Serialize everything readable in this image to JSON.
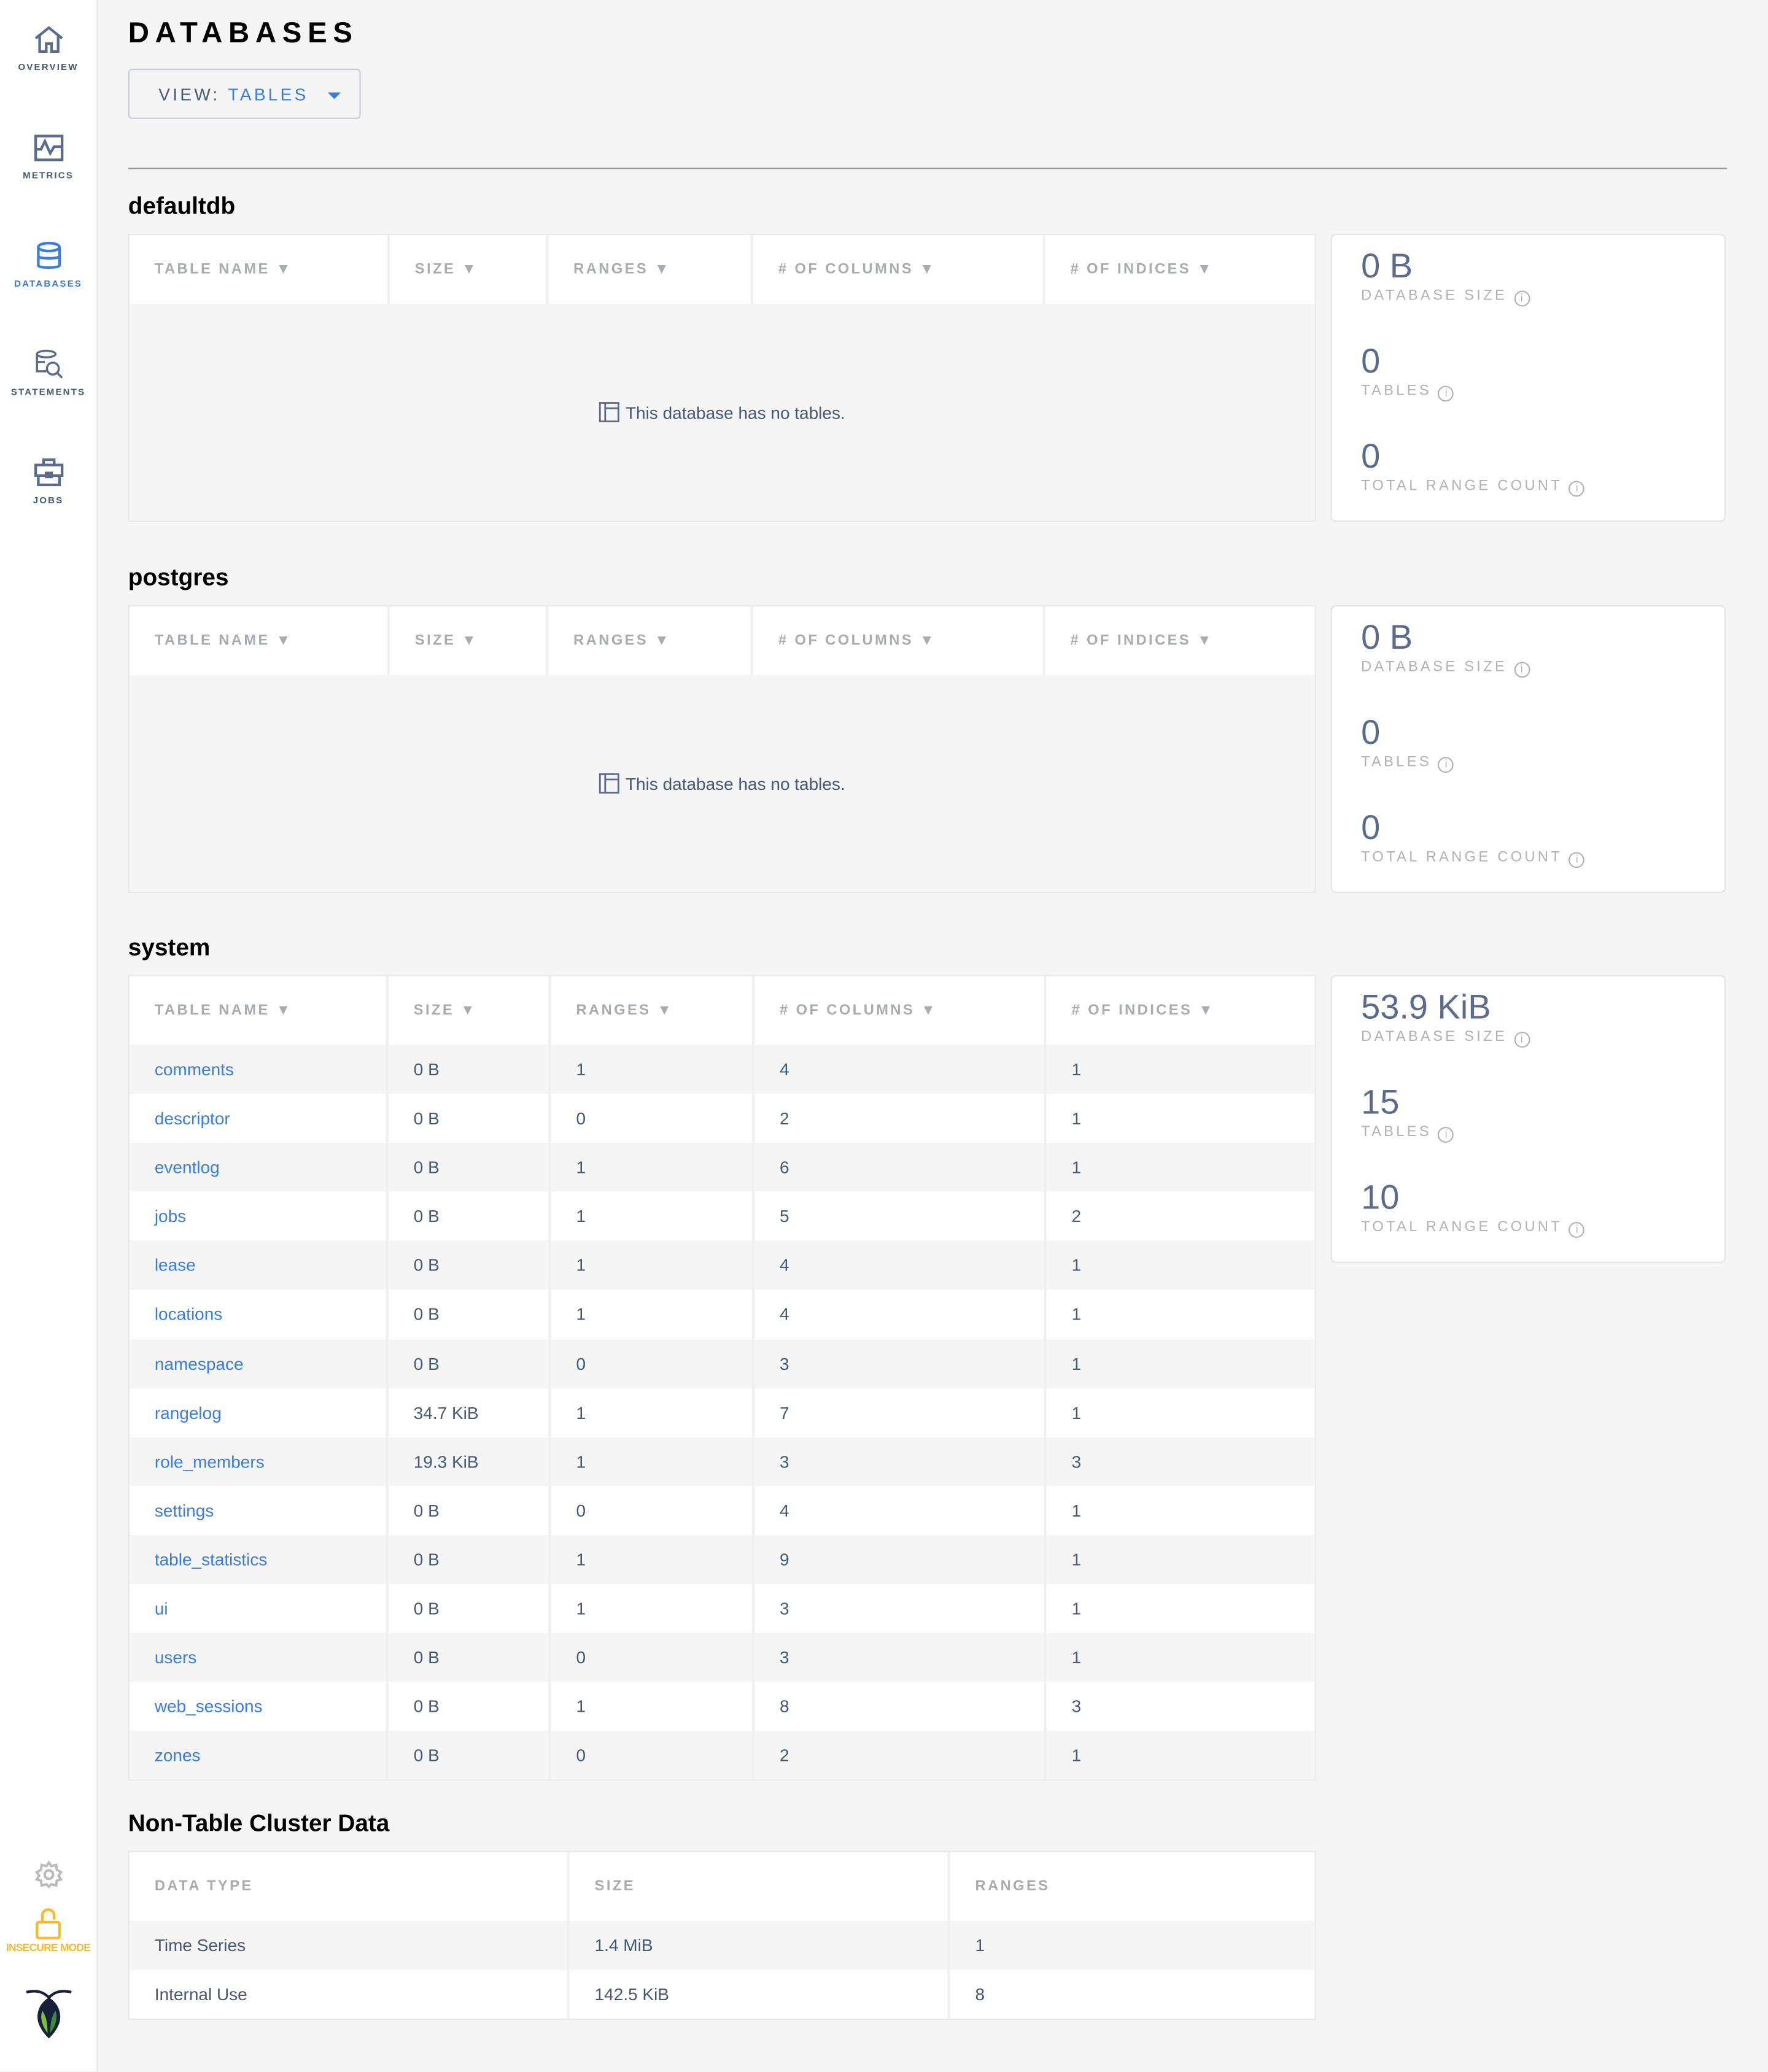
{
  "sidebar": {
    "items": [
      {
        "label": "OVERVIEW",
        "icon": "home-icon"
      },
      {
        "label": "METRICS",
        "icon": "metrics-icon"
      },
      {
        "label": "DATABASES",
        "icon": "database-icon",
        "active": true
      },
      {
        "label": "STATEMENTS",
        "icon": "statements-icon"
      },
      {
        "label": "JOBS",
        "icon": "briefcase-icon"
      }
    ],
    "insecure_label": "INSECURE MODE",
    "colors": {
      "active": "#3a7de1",
      "warning": "#f4bc2b"
    }
  },
  "page": {
    "title": "DATABASES",
    "view_label": "VIEW:",
    "view_value": "TABLES"
  },
  "table_headers": [
    "TABLE NAME ▼",
    "SIZE ▼",
    "RANGES ▼",
    "# OF COLUMNS ▼",
    "# OF INDICES ▼"
  ],
  "summary_labels": {
    "size": "DATABASE SIZE",
    "tables": "TABLES",
    "ranges": "TOTAL RANGE COUNT"
  },
  "empty_text": "This database has no tables.",
  "databases": [
    {
      "name": "defaultdb",
      "size": "0 B",
      "tables": "0",
      "ranges": "0"
    },
    {
      "name": "postgres",
      "size": "0 B",
      "tables": "0",
      "ranges": "0"
    },
    {
      "name": "system",
      "size": "53.9 KiB",
      "tables": "15",
      "ranges": "10",
      "rows": [
        [
          "comments",
          "0 B",
          "1",
          "4",
          "1"
        ],
        [
          "descriptor",
          "0 B",
          "0",
          "2",
          "1"
        ],
        [
          "eventlog",
          "0 B",
          "1",
          "6",
          "1"
        ],
        [
          "jobs",
          "0 B",
          "1",
          "5",
          "2"
        ],
        [
          "lease",
          "0 B",
          "1",
          "4",
          "1"
        ],
        [
          "locations",
          "0 B",
          "1",
          "4",
          "1"
        ],
        [
          "namespace",
          "0 B",
          "0",
          "3",
          "1"
        ],
        [
          "rangelog",
          "34.7 KiB",
          "1",
          "7",
          "1"
        ],
        [
          "role_members",
          "19.3 KiB",
          "1",
          "3",
          "3"
        ],
        [
          "settings",
          "0 B",
          "0",
          "4",
          "1"
        ],
        [
          "table_statistics",
          "0 B",
          "1",
          "9",
          "1"
        ],
        [
          "ui",
          "0 B",
          "1",
          "3",
          "1"
        ],
        [
          "users",
          "0 B",
          "0",
          "3",
          "1"
        ],
        [
          "web_sessions",
          "0 B",
          "1",
          "8",
          "3"
        ],
        [
          "zones",
          "0 B",
          "0",
          "2",
          "1"
        ]
      ]
    }
  ],
  "non_table": {
    "title": "Non-Table Cluster Data",
    "headers": [
      "DATA TYPE",
      "SIZE",
      "RANGES"
    ],
    "rows": [
      [
        "Time Series",
        "1.4 MiB",
        "1"
      ],
      [
        "Internal Use",
        "142.5 KiB",
        "8"
      ]
    ]
  }
}
